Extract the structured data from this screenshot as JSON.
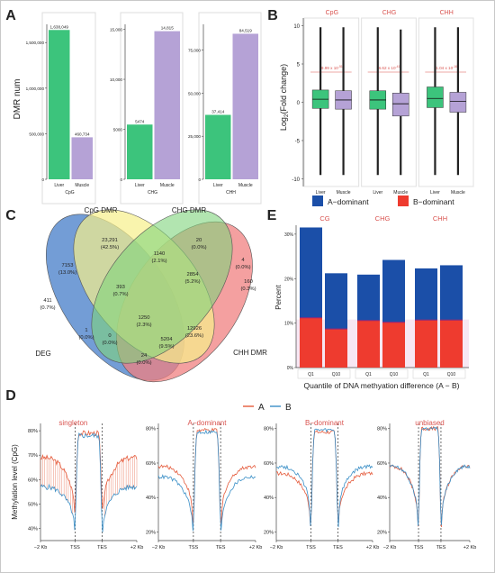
{
  "panel_letters": [
    "A",
    "B",
    "C",
    "D",
    "E"
  ],
  "colors": {
    "green": "#3cc47c",
    "purple": "#b5a2d6",
    "red_text": "#d9534f",
    "blue": "#1b4fa8",
    "red": "#ee3b2f",
    "pink": "#f0d0e8",
    "line_a": "#e55b3c",
    "line_b": "#3a8fc7",
    "venn_deg": "#5b8ccf",
    "venn_cpg": "#f6f08a",
    "venn_chg": "#7fd37c",
    "venn_chh": "#f08080"
  },
  "chart_data": [
    {
      "id": "A",
      "type": "bar",
      "ylabel": "DMR num",
      "subplots": [
        {
          "context": "CpG",
          "categories": [
            "Liver",
            "Muscle"
          ],
          "values": [
            1638049,
            460734
          ],
          "value_labels": [
            "1,638,049",
            "460,734"
          ],
          "ylim": [
            0,
            1700000
          ],
          "ticks": [
            0,
            500000,
            1000000,
            1500000
          ],
          "tick_labels": [
            "0",
            "500,000",
            "1,000,000",
            "1,500,000"
          ]
        },
        {
          "context": "CHG",
          "categories": [
            "Liver",
            "Muscle"
          ],
          "values": [
            5474,
            14815
          ],
          "value_labels": [
            "5474",
            "14,815"
          ],
          "ylim": [
            0,
            15500
          ],
          "ticks": [
            0,
            5000,
            10000,
            15000
          ],
          "tick_labels": [
            "0",
            "5000",
            "10,000",
            "15,000"
          ]
        },
        {
          "context": "CHH",
          "categories": [
            "Liver",
            "Muscle"
          ],
          "values": [
            37414,
            84519
          ],
          "value_labels": [
            "37,414",
            "84,519"
          ],
          "ylim": [
            0,
            90000
          ],
          "ticks": [
            0,
            25000,
            50000,
            75000
          ],
          "tick_labels": [
            "0",
            "25,000",
            "50,000",
            "75,000"
          ]
        }
      ]
    },
    {
      "id": "B",
      "type": "box",
      "ylabel": "Log",
      "ylabel_sub": "2",
      "ylabel_rest": "(Fold change)",
      "ylim": [
        -11,
        11
      ],
      "ticks": [
        -10,
        -5,
        0,
        5,
        10
      ],
      "groups": [
        {
          "context": "CpG",
          "pvalue": "9.99 x 10",
          "pexp": "-51",
          "boxes": [
            {
              "cat": "Liver",
              "q1": -0.8,
              "median": 0.4,
              "q3": 1.6,
              "wlo": -9.5,
              "whi": 9.8
            },
            {
              "cat": "Muscle",
              "q1": -0.9,
              "median": 0.3,
              "q3": 1.5,
              "wlo": -9.5,
              "whi": 9.8
            }
          ]
        },
        {
          "context": "CHG",
          "pvalue": "6.62 x 10",
          "pexp": "-41",
          "boxes": [
            {
              "cat": "Liver",
              "q1": -0.9,
              "median": 0.3,
              "q3": 1.5,
              "wlo": -9.5,
              "whi": 9.8
            },
            {
              "cat": "Muscle",
              "q1": -1.8,
              "median": -0.2,
              "q3": 1.2,
              "wlo": -9.5,
              "whi": 9.5
            }
          ]
        },
        {
          "context": "CHH",
          "pvalue": "1.04 x 10",
          "pexp": "-16",
          "boxes": [
            {
              "cat": "Liver",
              "q1": -0.7,
              "median": 0.5,
              "q3": 2.0,
              "wlo": -9.5,
              "whi": 9.8
            },
            {
              "cat": "Muscle",
              "q1": -1.3,
              "median": 0.1,
              "q3": 1.3,
              "wlo": -9.5,
              "whi": 9.8
            }
          ]
        }
      ]
    },
    {
      "id": "C",
      "type": "venn",
      "sets": [
        "DEG",
        "CpG DMR",
        "CHG DMR",
        "CHH DMR"
      ],
      "regions": [
        {
          "v": "411",
          "p": "(0.7%)"
        },
        {
          "v": "23,291",
          "p": "(42.5%)"
        },
        {
          "v": "20",
          "p": "(0.0%)"
        },
        {
          "v": "160",
          "p": "(0.3%)"
        },
        {
          "v": "7153",
          "p": "(13.0%)"
        },
        {
          "v": "1140",
          "p": "(2.1%)"
        },
        {
          "v": "4",
          "p": "(0.0%)"
        },
        {
          "v": "393",
          "p": "(0.7%)"
        },
        {
          "v": "2854",
          "p": "(5.2%)"
        },
        {
          "v": "1250",
          "p": "(2.3%)"
        },
        {
          "v": "1",
          "p": "(0.0%)"
        },
        {
          "v": "12926",
          "p": "(23.6%)"
        },
        {
          "v": "0",
          "p": "(0.0%)"
        },
        {
          "v": "5204",
          "p": "(9.5%)"
        },
        {
          "v": "24",
          "p": "(0.0%)"
        }
      ]
    },
    {
      "id": "D",
      "type": "line",
      "ylabel": "Methylation level (CpG)",
      "legend": [
        "A",
        "B"
      ],
      "xtick_labels": [
        "−2 Kb",
        "TSS",
        "TES",
        "+2 Kb"
      ],
      "panels": [
        {
          "title": "singleton",
          "ticks": [
            40,
            50,
            60,
            70,
            80
          ],
          "tick_labels": [
            "40%",
            "50%",
            "60%",
            "70%",
            "80%"
          ],
          "ylim": [
            35,
            83
          ],
          "a_flank": 69,
          "a_dip": 52,
          "a_tss": 44,
          "a_gene": 79,
          "b_flank": 57,
          "b_dip": 44,
          "b_tss": 36,
          "b_gene": 78
        },
        {
          "title": "A−dominant",
          "ticks": [
            20,
            40,
            60,
            80
          ],
          "tick_labels": [
            "20%",
            "40%",
            "60%",
            "80%"
          ],
          "ylim": [
            15,
            83
          ],
          "a_flank": 58,
          "a_dip": 37,
          "a_tss": 17,
          "a_gene": 79,
          "b_flank": 52,
          "b_dip": 30,
          "b_tss": 15,
          "b_gene": 78
        },
        {
          "title": "B−dominant",
          "ticks": [
            20,
            40,
            60,
            80
          ],
          "tick_labels": [
            "20%",
            "40%",
            "60%",
            "80%"
          ],
          "ylim": [
            15,
            83
          ],
          "a_flank": 54,
          "a_dip": 35,
          "a_tss": 18,
          "a_gene": 78,
          "b_flank": 58,
          "b_dip": 38,
          "b_tss": 16,
          "b_gene": 79
        },
        {
          "title": "unbiased",
          "ticks": [
            20,
            40,
            60,
            80
          ],
          "tick_labels": [
            "20%",
            "40%",
            "60%",
            "80%"
          ],
          "ylim": [
            15,
            83
          ],
          "a_flank": 58,
          "a_dip": 33,
          "a_tss": 18,
          "a_gene": 80,
          "b_flank": 58,
          "b_dip": 33,
          "b_tss": 18,
          "b_gene": 80
        }
      ]
    },
    {
      "id": "E",
      "type": "bar",
      "stacked": true,
      "ylabel": "Percent",
      "xlabel": "Quantile of DNA methyation difference (A − B)",
      "legend": [
        "A−dominant",
        "B−dominant"
      ],
      "ticks": [
        0,
        10,
        20,
        30
      ],
      "tick_labels": [
        "0%",
        "10%",
        "20%",
        "30%"
      ],
      "ylim": [
        0,
        32
      ],
      "groups": [
        {
          "context": "CG",
          "categories": [
            "Q1",
            "Q10"
          ],
          "b_dominant": [
            11.2,
            8.7
          ],
          "a_dominant": [
            20.3,
            12.5
          ]
        },
        {
          "context": "CHG",
          "categories": [
            "Q1",
            "Q10"
          ],
          "b_dominant": [
            10.6,
            10.2
          ],
          "a_dominant": [
            10.3,
            14.0
          ]
        },
        {
          "context": "CHH",
          "categories": [
            "Q1",
            "Q10"
          ],
          "b_dominant": [
            10.7,
            10.7
          ],
          "a_dominant": [
            11.6,
            12.3
          ]
        }
      ]
    }
  ]
}
